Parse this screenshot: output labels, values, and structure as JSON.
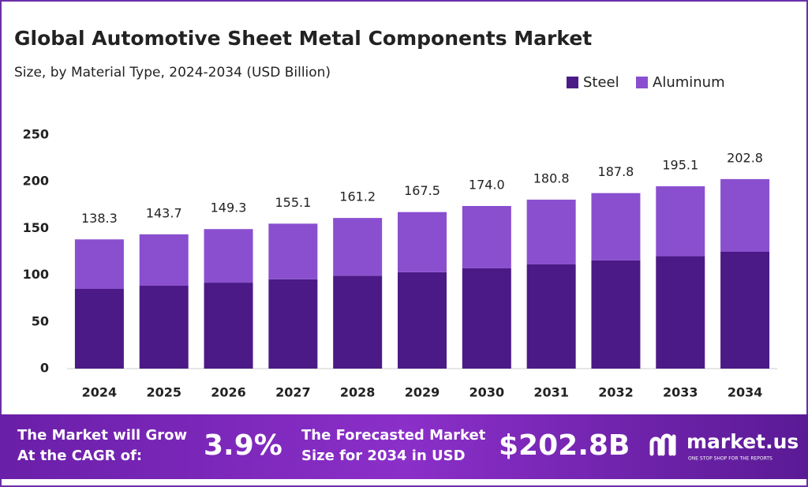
{
  "chart_data": {
    "type": "stacked-bar",
    "title": "Global Automotive Sheet Metal Components Market",
    "subtitle": "Size, by Material Type, 2024-2034 (USD Billion)",
    "categories": [
      "2024",
      "2025",
      "2026",
      "2027",
      "2028",
      "2029",
      "2030",
      "2031",
      "2032",
      "2033",
      "2034"
    ],
    "series": [
      {
        "name": "Steel",
        "color": "#4b1a86",
        "values": [
          85.3,
          88.7,
          92.0,
          95.6,
          99.4,
          103.2,
          107.3,
          111.5,
          115.8,
          120.3,
          125.0
        ]
      },
      {
        "name": "Aluminum",
        "color": "#8a4fcf",
        "values": [
          53.0,
          55.0,
          57.3,
          59.5,
          61.8,
          64.3,
          66.7,
          69.3,
          72.0,
          74.8,
          77.8
        ]
      }
    ],
    "totals": [
      138.3,
      143.7,
      149.3,
      155.1,
      161.2,
      167.5,
      {
        "value": 174.0,
        "label": "174.0"
      },
      180.8,
      187.8,
      195.1,
      202.8
    ],
    "ylim": [
      0,
      250
    ],
    "yticks": [
      0,
      50,
      100,
      150,
      200,
      250
    ],
    "grid": false
  },
  "footer": {
    "cagr_text_1": "The Market will Grow",
    "cagr_text_2": "At the CAGR of:",
    "cagr": "3.9%",
    "forecast_text_1": "The Forecasted Market",
    "forecast_text_2": "Size for 2034 in USD",
    "forecast": "$202.8B",
    "brand": "market.us",
    "tagline": "ONE STOP SHOP FOR THE REPORTS"
  }
}
